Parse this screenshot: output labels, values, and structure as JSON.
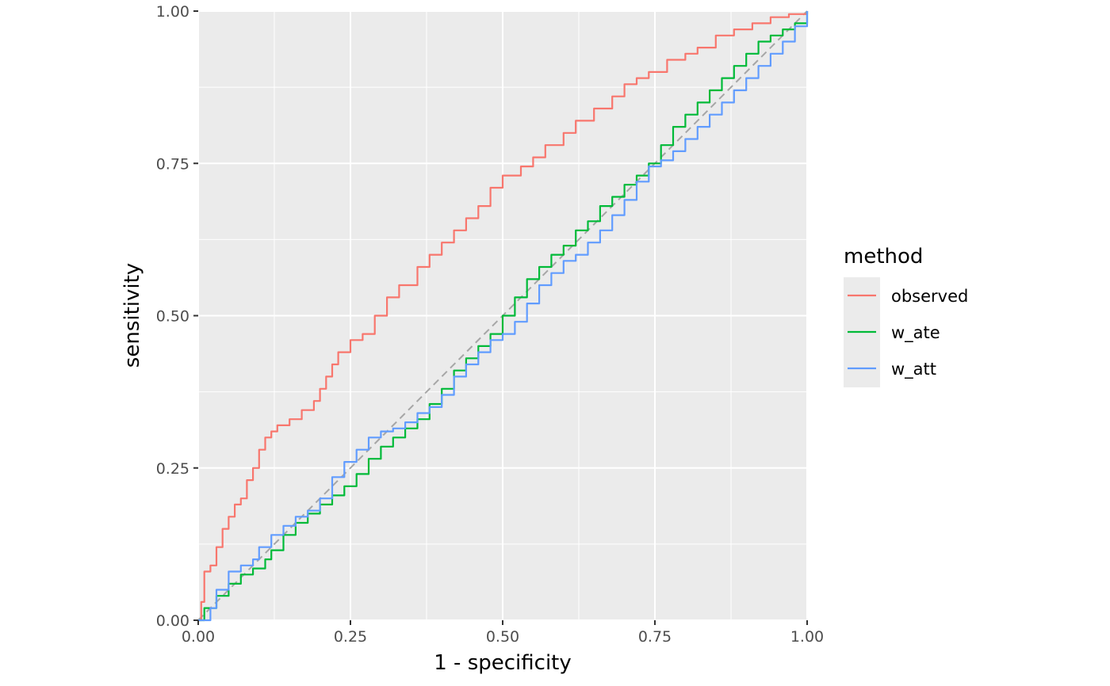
{
  "chart_data": {
    "type": "line",
    "title": "",
    "xlabel": "1 - specificity",
    "ylabel": "sensitivity",
    "xlim": [
      0,
      1
    ],
    "ylim": [
      0,
      1
    ],
    "x_ticks": [
      "0.00",
      "0.25",
      "0.50",
      "0.75",
      "1.00"
    ],
    "y_ticks": [
      "0.00",
      "0.25",
      "0.50",
      "0.75",
      "1.00"
    ],
    "grid": true,
    "panel_background": "#ebebeb",
    "reference_line": {
      "type": "diagonal",
      "style": "dashed",
      "color": "#a6a6a6"
    },
    "legend": {
      "title": "method",
      "placement": "right"
    },
    "series": [
      {
        "name": "observed",
        "color": "#f8766d",
        "points": [
          [
            0,
            0
          ],
          [
            0.005,
            0.03
          ],
          [
            0.01,
            0.08
          ],
          [
            0.02,
            0.09
          ],
          [
            0.03,
            0.12
          ],
          [
            0.04,
            0.15
          ],
          [
            0.05,
            0.17
          ],
          [
            0.06,
            0.19
          ],
          [
            0.07,
            0.2
          ],
          [
            0.08,
            0.23
          ],
          [
            0.09,
            0.25
          ],
          [
            0.1,
            0.28
          ],
          [
            0.11,
            0.3
          ],
          [
            0.12,
            0.31
          ],
          [
            0.13,
            0.32
          ],
          [
            0.15,
            0.33
          ],
          [
            0.17,
            0.345
          ],
          [
            0.19,
            0.36
          ],
          [
            0.2,
            0.38
          ],
          [
            0.21,
            0.4
          ],
          [
            0.22,
            0.42
          ],
          [
            0.23,
            0.44
          ],
          [
            0.25,
            0.46
          ],
          [
            0.27,
            0.47
          ],
          [
            0.29,
            0.5
          ],
          [
            0.31,
            0.53
          ],
          [
            0.33,
            0.55
          ],
          [
            0.36,
            0.58
          ],
          [
            0.38,
            0.6
          ],
          [
            0.4,
            0.62
          ],
          [
            0.42,
            0.64
          ],
          [
            0.44,
            0.66
          ],
          [
            0.46,
            0.68
          ],
          [
            0.48,
            0.71
          ],
          [
            0.5,
            0.73
          ],
          [
            0.53,
            0.745
          ],
          [
            0.55,
            0.76
          ],
          [
            0.57,
            0.78
          ],
          [
            0.6,
            0.8
          ],
          [
            0.62,
            0.82
          ],
          [
            0.65,
            0.84
          ],
          [
            0.68,
            0.86
          ],
          [
            0.7,
            0.88
          ],
          [
            0.72,
            0.89
          ],
          [
            0.74,
            0.9
          ],
          [
            0.77,
            0.92
          ],
          [
            0.8,
            0.93
          ],
          [
            0.82,
            0.94
          ],
          [
            0.85,
            0.96
          ],
          [
            0.88,
            0.97
          ],
          [
            0.91,
            0.98
          ],
          [
            0.94,
            0.99
          ],
          [
            0.97,
            0.995
          ],
          [
            1,
            1
          ]
        ]
      },
      {
        "name": "w_ate",
        "color": "#00ba38",
        "points": [
          [
            0,
            0
          ],
          [
            0.01,
            0.02
          ],
          [
            0.03,
            0.04
          ],
          [
            0.05,
            0.06
          ],
          [
            0.07,
            0.075
          ],
          [
            0.09,
            0.085
          ],
          [
            0.11,
            0.1
          ],
          [
            0.12,
            0.115
          ],
          [
            0.14,
            0.14
          ],
          [
            0.16,
            0.16
          ],
          [
            0.18,
            0.175
          ],
          [
            0.2,
            0.19
          ],
          [
            0.22,
            0.205
          ],
          [
            0.24,
            0.22
          ],
          [
            0.26,
            0.24
          ],
          [
            0.28,
            0.265
          ],
          [
            0.3,
            0.285
          ],
          [
            0.32,
            0.3
          ],
          [
            0.34,
            0.315
          ],
          [
            0.36,
            0.33
          ],
          [
            0.38,
            0.355
          ],
          [
            0.4,
            0.38
          ],
          [
            0.42,
            0.41
          ],
          [
            0.44,
            0.43
          ],
          [
            0.46,
            0.45
          ],
          [
            0.48,
            0.47
          ],
          [
            0.5,
            0.5
          ],
          [
            0.52,
            0.53
          ],
          [
            0.54,
            0.56
          ],
          [
            0.56,
            0.58
          ],
          [
            0.58,
            0.6
          ],
          [
            0.6,
            0.615
          ],
          [
            0.62,
            0.64
          ],
          [
            0.64,
            0.655
          ],
          [
            0.66,
            0.68
          ],
          [
            0.68,
            0.695
          ],
          [
            0.7,
            0.715
          ],
          [
            0.72,
            0.73
          ],
          [
            0.74,
            0.75
          ],
          [
            0.76,
            0.78
          ],
          [
            0.78,
            0.81
          ],
          [
            0.8,
            0.83
          ],
          [
            0.82,
            0.85
          ],
          [
            0.84,
            0.87
          ],
          [
            0.86,
            0.89
          ],
          [
            0.88,
            0.91
          ],
          [
            0.9,
            0.93
          ],
          [
            0.92,
            0.95
          ],
          [
            0.94,
            0.96
          ],
          [
            0.96,
            0.97
          ],
          [
            0.98,
            0.98
          ],
          [
            1,
            1
          ]
        ]
      },
      {
        "name": "w_att",
        "color": "#619cff",
        "points": [
          [
            0,
            0
          ],
          [
            0.02,
            0.02
          ],
          [
            0.03,
            0.05
          ],
          [
            0.05,
            0.08
          ],
          [
            0.07,
            0.09
          ],
          [
            0.09,
            0.1
          ],
          [
            0.1,
            0.12
          ],
          [
            0.12,
            0.14
          ],
          [
            0.14,
            0.155
          ],
          [
            0.16,
            0.17
          ],
          [
            0.18,
            0.18
          ],
          [
            0.2,
            0.2
          ],
          [
            0.22,
            0.235
          ],
          [
            0.24,
            0.26
          ],
          [
            0.26,
            0.28
          ],
          [
            0.28,
            0.3
          ],
          [
            0.3,
            0.31
          ],
          [
            0.32,
            0.315
          ],
          [
            0.34,
            0.325
          ],
          [
            0.36,
            0.34
          ],
          [
            0.38,
            0.35
          ],
          [
            0.4,
            0.37
          ],
          [
            0.42,
            0.4
          ],
          [
            0.44,
            0.42
          ],
          [
            0.46,
            0.44
          ],
          [
            0.48,
            0.46
          ],
          [
            0.5,
            0.47
          ],
          [
            0.52,
            0.49
          ],
          [
            0.54,
            0.52
          ],
          [
            0.56,
            0.55
          ],
          [
            0.58,
            0.57
          ],
          [
            0.6,
            0.59
          ],
          [
            0.62,
            0.6
          ],
          [
            0.64,
            0.62
          ],
          [
            0.66,
            0.64
          ],
          [
            0.68,
            0.665
          ],
          [
            0.7,
            0.69
          ],
          [
            0.72,
            0.72
          ],
          [
            0.74,
            0.745
          ],
          [
            0.76,
            0.755
          ],
          [
            0.78,
            0.77
          ],
          [
            0.8,
            0.79
          ],
          [
            0.82,
            0.81
          ],
          [
            0.84,
            0.83
          ],
          [
            0.86,
            0.85
          ],
          [
            0.88,
            0.87
          ],
          [
            0.9,
            0.89
          ],
          [
            0.92,
            0.91
          ],
          [
            0.94,
            0.93
          ],
          [
            0.96,
            0.95
          ],
          [
            0.98,
            0.975
          ],
          [
            1,
            1
          ]
        ]
      }
    ]
  }
}
